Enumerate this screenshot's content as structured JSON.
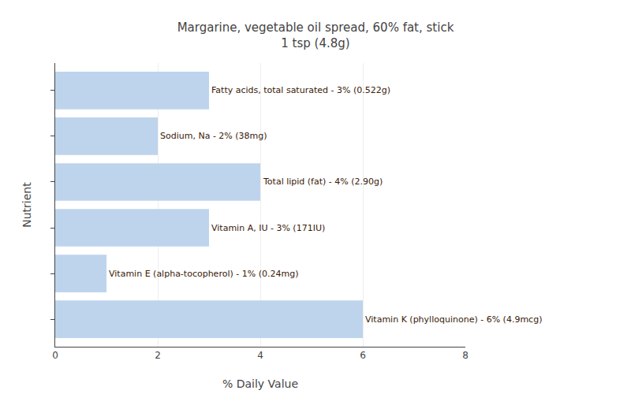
{
  "chart_data": {
    "type": "bar",
    "orientation": "horizontal",
    "title": "Margarine, vegetable oil spread, 60% fat, stick\n1 tsp (4.8g)",
    "xlabel": "% Daily Value",
    "ylabel": "Nutrient",
    "categories": [
      "Fatty acids, total saturated - 3% (0.522g)",
      "Sodium, Na - 2% (38mg)",
      "Total lipid (fat) - 4% (2.90g)",
      "Vitamin A, IU - 3% (171IU)",
      "Vitamin E (alpha-tocopherol) - 1% (0.24mg)",
      "Vitamin K (phylloquinone) - 6% (4.9mcg)"
    ],
    "values": [
      3,
      2,
      4,
      3,
      1,
      6
    ],
    "color": "#bed4ed",
    "xlim": [
      0,
      8
    ],
    "xticks": [
      0,
      2,
      4,
      6,
      8
    ],
    "grid": true,
    "tick_labels": "x"
  }
}
